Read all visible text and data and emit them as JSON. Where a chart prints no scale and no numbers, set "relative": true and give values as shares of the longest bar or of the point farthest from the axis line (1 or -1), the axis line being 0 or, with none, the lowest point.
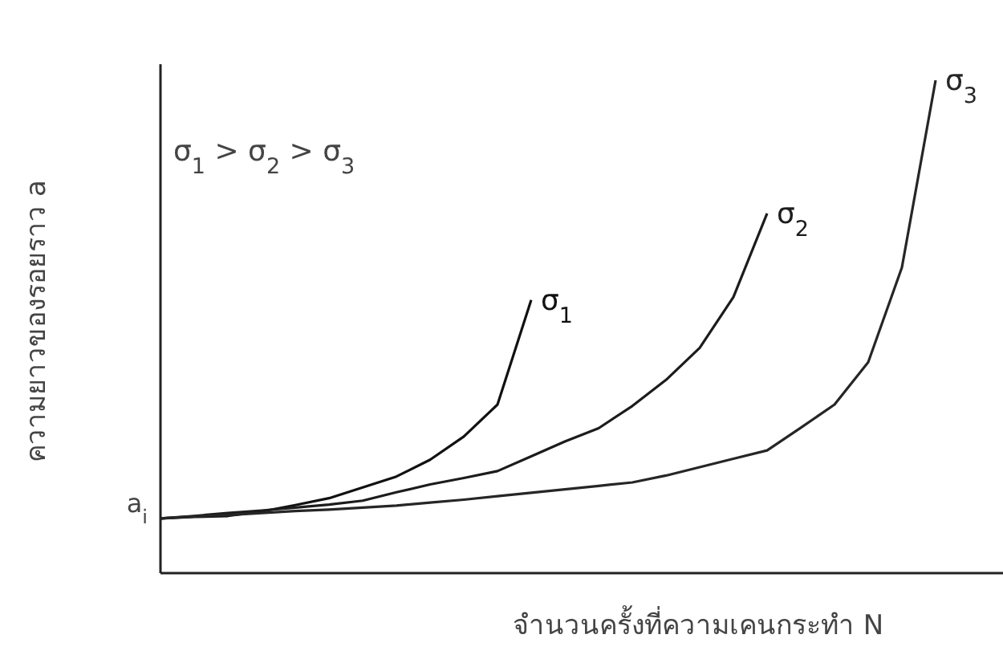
{
  "chart_data": {
    "type": "line",
    "relative": true,
    "xlabel": "จำนวนครั้งที่ความเคนกระทำ N",
    "ylabel": "ความยาวของรอยราว a",
    "categories": [
      null,
      null,
      null,
      null,
      null,
      null,
      null,
      null,
      null,
      null,
      null,
      null,
      null,
      null,
      null,
      null,
      null,
      null,
      null,
      null,
      null,
      null,
      null,
      null,
      null
    ],
    "series": [
      {
        "name": "σ$_{1}$",
        "color": "#111111",
        "values": [
          0.111,
          0.114,
          0.116,
          0.125,
          0.138,
          0.152,
          0.174,
          0.196,
          0.23,
          0.277,
          0.342,
          0.554,
          null,
          null,
          null,
          null,
          null,
          null,
          null,
          null,
          null,
          null,
          null,
          null,
          null
        ]
      },
      {
        "name": "σ$_{2}$",
        "color": "#1c1c1c",
        "values": [
          0.111,
          0.116,
          0.122,
          0.127,
          0.133,
          0.139,
          0.147,
          0.164,
          0.18,
          0.193,
          0.207,
          0.237,
          0.267,
          0.294,
          0.339,
          0.392,
          0.457,
          0.56,
          0.73,
          null,
          null,
          null,
          null,
          null,
          null
        ]
      },
      {
        "name": "σ$_{3}$",
        "color": "#262626",
        "values": [
          0.111,
          0.115,
          0.118,
          0.122,
          0.126,
          0.129,
          0.133,
          0.137,
          0.143,
          0.149,
          0.156,
          0.163,
          0.17,
          0.177,
          0.184,
          0.198,
          0.215,
          0.232,
          0.249,
          0.295,
          0.342,
          0.428,
          0.62,
          1,
          null
        ]
      }
    ],
    "annotations": [
      "σ$_{1}$ > σ$_{2}$ > σ$_{3}$",
      "a$_{i}$"
    ]
  }
}
